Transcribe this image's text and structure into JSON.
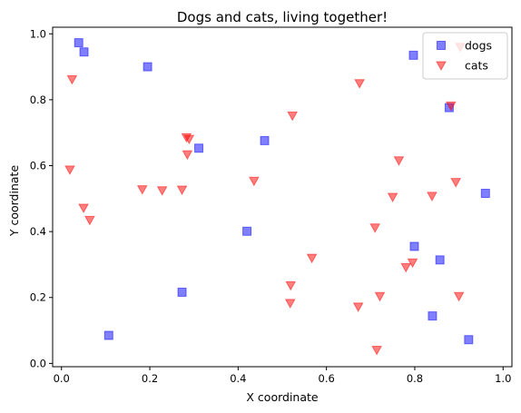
{
  "chart_data": {
    "type": "scatter",
    "title": "Dogs and cats, living together!",
    "xlabel": "X coordinate",
    "ylabel": "Y coordinate",
    "xlim": [
      -0.02,
      1.02
    ],
    "ylim": [
      -0.01,
      1.02
    ],
    "xticks": [
      "0.0",
      "0.2",
      "0.4",
      "0.6",
      "0.8",
      "1.0"
    ],
    "yticks": [
      "0.0",
      "0.2",
      "0.4",
      "0.6",
      "0.8",
      "1.0"
    ],
    "grid": false,
    "legend_position": "top-right",
    "series": [
      {
        "name": "dogs",
        "marker": "square",
        "color": "#0000ff",
        "points": [
          [
            0.039,
            0.973
          ],
          [
            0.051,
            0.945
          ],
          [
            0.195,
            0.9
          ],
          [
            0.107,
            0.085
          ],
          [
            0.273,
            0.216
          ],
          [
            0.311,
            0.653
          ],
          [
            0.46,
            0.676
          ],
          [
            0.42,
            0.401
          ],
          [
            0.797,
            0.935
          ],
          [
            0.878,
            0.776
          ],
          [
            0.799,
            0.355
          ],
          [
            0.857,
            0.314
          ],
          [
            0.84,
            0.144
          ],
          [
            0.922,
            0.072
          ],
          [
            0.96,
            0.516
          ]
        ]
      },
      {
        "name": "cats",
        "marker": "triangle-down",
        "color": "#ff0000",
        "points": [
          [
            0.024,
            0.862
          ],
          [
            0.019,
            0.588
          ],
          [
            0.05,
            0.472
          ],
          [
            0.064,
            0.435
          ],
          [
            0.183,
            0.528
          ],
          [
            0.228,
            0.525
          ],
          [
            0.283,
            0.686
          ],
          [
            0.289,
            0.681
          ],
          [
            0.285,
            0.634
          ],
          [
            0.273,
            0.527
          ],
          [
            0.436,
            0.554
          ],
          [
            0.523,
            0.752
          ],
          [
            0.519,
            0.237
          ],
          [
            0.518,
            0.183
          ],
          [
            0.567,
            0.32
          ],
          [
            0.675,
            0.85
          ],
          [
            0.71,
            0.412
          ],
          [
            0.721,
            0.204
          ],
          [
            0.672,
            0.172
          ],
          [
            0.714,
            0.041
          ],
          [
            0.764,
            0.616
          ],
          [
            0.75,
            0.505
          ],
          [
            0.78,
            0.292
          ],
          [
            0.795,
            0.306
          ],
          [
            0.839,
            0.508
          ],
          [
            0.882,
            0.782
          ],
          [
            0.893,
            0.55
          ],
          [
            0.903,
            0.96
          ],
          [
            0.9,
            0.204
          ]
        ]
      }
    ]
  }
}
